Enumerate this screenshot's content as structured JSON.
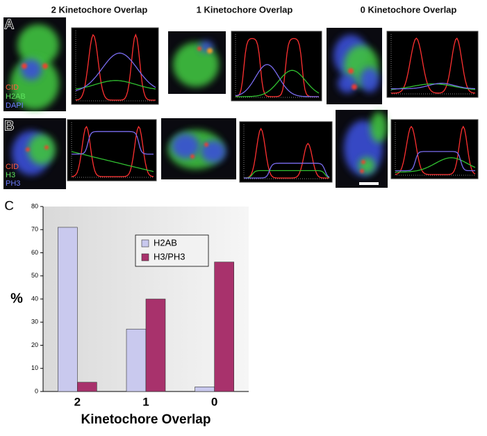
{
  "headers": [
    "2 Kinetochore Overlap",
    "1 Kinetochore Overlap",
    "0 Kinetochore Overlap"
  ],
  "panels": {
    "a": {
      "label": "A",
      "stains": [
        "CID",
        "H2AB",
        "DAPI"
      ]
    },
    "b": {
      "label": "B",
      "stains": [
        "CID",
        "H3",
        "PH3"
      ]
    },
    "c": {
      "label": "C"
    }
  },
  "chart_data": {
    "type": "bar",
    "categories": [
      "2",
      "1",
      "0"
    ],
    "series": [
      {
        "name": "H2AB",
        "color": "#c9c9ee",
        "values": [
          71,
          27,
          2
        ]
      },
      {
        "name": "H3/PH3",
        "color": "#a8326c",
        "values": [
          4,
          40,
          56
        ]
      }
    ],
    "ylim": [
      0,
      80
    ],
    "yticks": [
      0,
      10,
      20,
      30,
      40,
      50,
      60,
      70,
      80
    ],
    "ylabel": "%",
    "xlabel": "Kinetochore Overlap",
    "legend": "top-center",
    "grid": false
  }
}
